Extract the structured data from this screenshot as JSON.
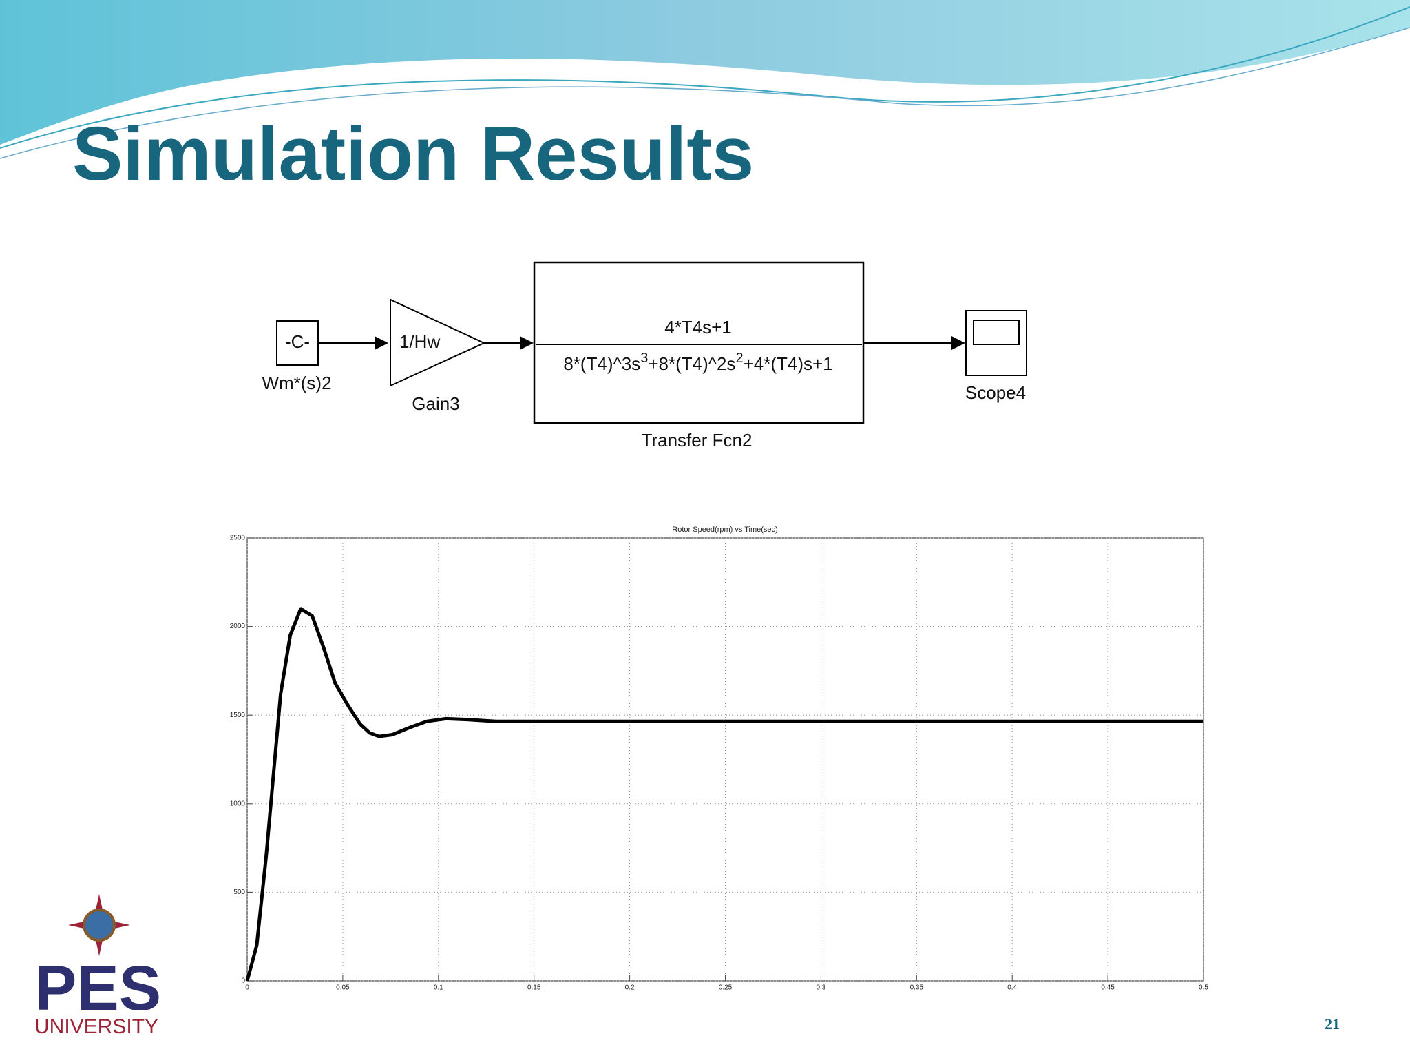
{
  "slide": {
    "title": "Simulation Results",
    "page_number": "21",
    "logo": {
      "name": "PES",
      "subtitle": "UNIVERSITY"
    }
  },
  "diagram": {
    "nodes": [
      {
        "text": "-C-",
        "label": "Wm*(s)2"
      },
      {
        "text": "1/Hw",
        "label": "Gain3"
      },
      {
        "numerator": "4*T4s+1",
        "denominator": [
          "8*(T4)^3s",
          "3",
          "+8*(T4)^2s",
          "2",
          "+4*(T4)s+1"
        ],
        "label": "Transfer Fcn2"
      },
      {
        "label": "Scope4"
      }
    ]
  },
  "chart_data": {
    "type": "line",
    "title": "Rotor Speed(rpm) vs Time(sec)",
    "x": [
      0,
      0.005,
      0.01,
      0.0175,
      0.0225,
      0.028,
      0.034,
      0.04,
      0.046,
      0.053,
      0.059,
      0.064,
      0.069,
      0.076,
      0.085,
      0.094,
      0.104,
      0.115,
      0.13,
      0.2,
      0.3,
      0.4,
      0.5
    ],
    "values": [
      0,
      200,
      710,
      1620,
      1950,
      2100,
      2060,
      1880,
      1680,
      1550,
      1450,
      1400,
      1380,
      1390,
      1430,
      1465,
      1480,
      1475,
      1465,
      1465,
      1465,
      1465,
      1465
    ],
    "color": "#000000",
    "xlim": [
      0,
      0.5
    ],
    "xticks": [
      0,
      0.05,
      0.1,
      0.15,
      0.2,
      0.25,
      0.3,
      0.35,
      0.4,
      0.45,
      0.5
    ],
    "ylim": [
      0,
      2500
    ],
    "yticks": [
      0,
      500,
      1000,
      1500,
      2000,
      2500
    ],
    "grid": true
  }
}
